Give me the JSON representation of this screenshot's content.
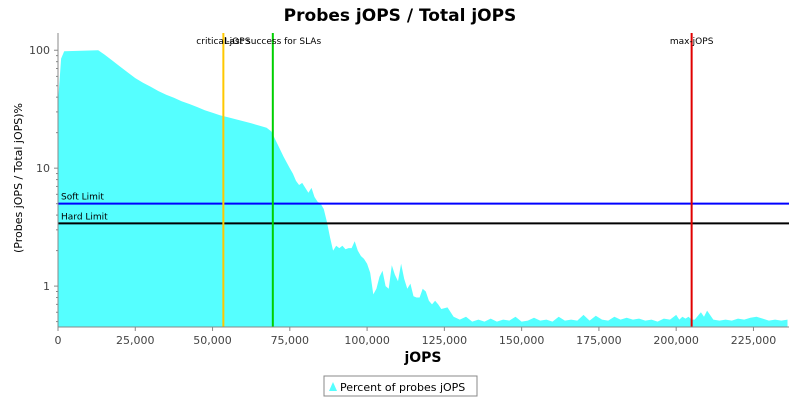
{
  "chart_data": {
    "type": "area",
    "title": "Probes jOPS / Total jOPS",
    "xlabel": "jOPS",
    "ylabel": "(Probes jOPS / Total jOPS)%",
    "xlim": [
      0,
      236500
    ],
    "ylim_log": [
      0.45,
      140
    ],
    "y_scale": "log",
    "x_ticks": [
      0,
      25000,
      50000,
      75000,
      100000,
      125000,
      150000,
      175000,
      200000,
      225000
    ],
    "x_tick_labels": [
      "0",
      "25,000",
      "50,000",
      "75,000",
      "100,000",
      "125,000",
      "150,000",
      "175,000",
      "200,000",
      "225,000"
    ],
    "y_ticks": [
      1,
      10,
      100
    ],
    "y_tick_labels": [
      "1",
      "10",
      "100"
    ],
    "grid": false,
    "legend_position": "bottom",
    "series": [
      {
        "name": "Percent of probes jOPS",
        "color": "#55FFFF",
        "x": [
          0,
          1000,
          2000,
          13000,
          15000,
          17500,
          20000,
          22500,
          25000,
          27500,
          30000,
          32500,
          35000,
          37500,
          40000,
          42500,
          45000,
          47500,
          50000,
          52500,
          55000,
          57500,
          60000,
          62500,
          65000,
          67500,
          69000,
          71000,
          73000,
          75000,
          76000,
          77000,
          78000,
          79000,
          80000,
          81000,
          82000,
          83000,
          84000,
          85000,
          86000,
          87000,
          88000,
          89000,
          90000,
          91000,
          92000,
          93000,
          94000,
          95000,
          96000,
          97000,
          98000,
          99000,
          100000,
          101000,
          102000,
          103000,
          104000,
          105000,
          106000,
          107000,
          108000,
          109000,
          110000,
          111000,
          112000,
          113000,
          114000,
          115000,
          116000,
          117000,
          118000,
          119000,
          120000,
          121000,
          122000,
          123000,
          124000,
          126000,
          128000,
          130000,
          132000,
          134000,
          136000,
          138000,
          140000,
          142000,
          144000,
          146000,
          148000,
          150000,
          152000,
          154000,
          156000,
          158000,
          160000,
          162000,
          164000,
          166000,
          168000,
          170000,
          172000,
          174000,
          176000,
          178000,
          180000,
          182000,
          184000,
          186000,
          188000,
          190000,
          192000,
          194000,
          196000,
          198000,
          200000,
          201000,
          202000,
          203000,
          204000,
          205000,
          206000,
          208000,
          209000,
          210000,
          212000,
          214000,
          216000,
          218000,
          220000,
          222000,
          224000,
          226000,
          228000,
          230000,
          232000,
          234000,
          236000
        ],
        "values": [
          36,
          85,
          98,
          100,
          92,
          82,
          73,
          65,
          58,
          53,
          49,
          45,
          42,
          39.5,
          37,
          35,
          33,
          31,
          29.5,
          28,
          27,
          26,
          25,
          24,
          23,
          22,
          20.5,
          16,
          12.5,
          10,
          9,
          7.8,
          7.2,
          7.5,
          6.8,
          6.2,
          6.8,
          5.7,
          5.2,
          5.0,
          4.5,
          3.5,
          2.6,
          2.0,
          2.2,
          2.1,
          2.2,
          2.05,
          2.1,
          2.1,
          2.4,
          2.0,
          1.8,
          1.7,
          1.55,
          1.3,
          0.85,
          0.95,
          1.2,
          1.35,
          1.0,
          0.95,
          1.5,
          1.25,
          1.1,
          1.55,
          1.15,
          0.95,
          1.05,
          0.82,
          0.8,
          0.8,
          0.95,
          0.9,
          0.75,
          0.7,
          0.75,
          0.7,
          0.64,
          0.66,
          0.55,
          0.52,
          0.55,
          0.5,
          0.52,
          0.5,
          0.53,
          0.5,
          0.52,
          0.51,
          0.55,
          0.5,
          0.51,
          0.54,
          0.51,
          0.52,
          0.5,
          0.55,
          0.51,
          0.52,
          0.51,
          0.57,
          0.51,
          0.56,
          0.52,
          0.51,
          0.55,
          0.52,
          0.54,
          0.52,
          0.53,
          0.51,
          0.52,
          0.5,
          0.53,
          0.52,
          0.57,
          0.52,
          0.55,
          0.53,
          0.55,
          0.52,
          0.52,
          0.6,
          0.55,
          0.62,
          0.52,
          0.51,
          0.52,
          0.51,
          0.53,
          0.52,
          0.54,
          0.55,
          0.53,
          0.51,
          0.52,
          0.51,
          0.52
        ]
      }
    ],
    "vertical_markers": [
      {
        "label": "critical-jOPS",
        "x": 53500,
        "color": "#FFC800"
      },
      {
        "label": "Last success for SLAs",
        "x": 69500,
        "color": "#00D000"
      },
      {
        "label": "max-jOPS",
        "x": 205000,
        "color": "#E00000"
      }
    ],
    "horizontal_markers": [
      {
        "label": "Soft Limit",
        "y": 5,
        "color": "#0000FF"
      },
      {
        "label": "Hard Limit",
        "y": 3.4,
        "color": "#000000"
      }
    ]
  }
}
